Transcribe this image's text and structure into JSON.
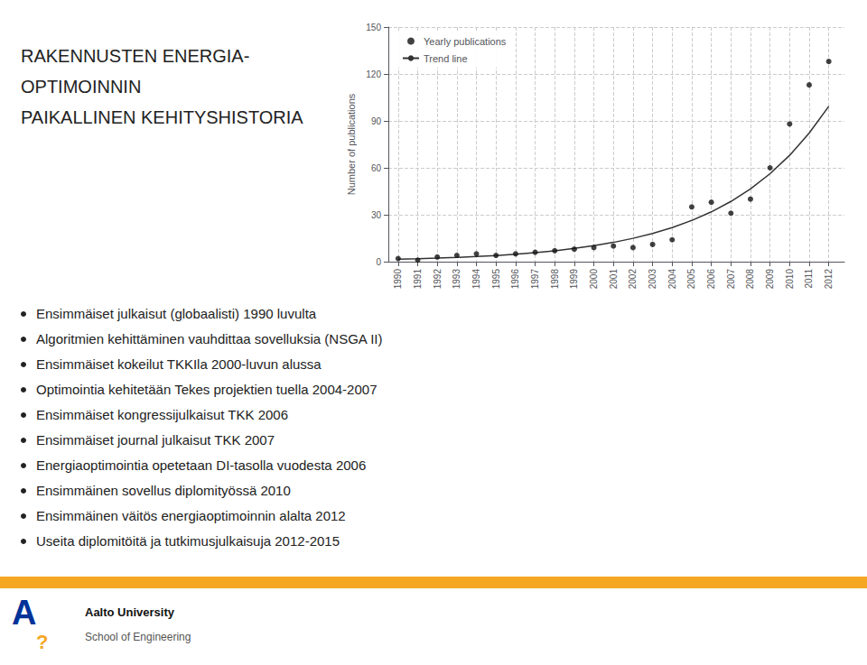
{
  "chart_data": {
    "type": "scatter",
    "title": "RAKENNUSTEN ENERGIA-\nOPTIMOINNIN\nPAIKALLINEN KEHITYSHISTORIA",
    "ylabel": "Number of publications",
    "x": [
      1990,
      1991,
      1992,
      1993,
      1994,
      1995,
      1996,
      1997,
      1998,
      1999,
      2000,
      2001,
      2002,
      2003,
      2004,
      2005,
      2006,
      2007,
      2008,
      2009,
      2010,
      2011,
      2012
    ],
    "series": [
      {
        "name": "Yearly publications",
        "type": "scatter",
        "color": "#111111",
        "values": [
          2,
          1,
          3,
          4,
          5,
          4,
          5,
          6,
          7,
          8,
          9,
          10,
          9,
          11,
          14,
          35,
          38,
          31,
          40,
          60,
          88,
          113,
          128
        ]
      },
      {
        "name": "Trend line",
        "type": "line",
        "color": "#333333",
        "values": [
          1.53,
          1.85,
          2.24,
          2.71,
          3.27,
          3.96,
          4.78,
          5.78,
          6.99,
          8.45,
          10.21,
          12.34,
          14.92,
          18.03,
          21.8,
          26.35,
          31.85,
          38.5,
          46.53,
          56.25,
          67.99,
          82.18,
          99.33
        ]
      }
    ],
    "xlim": [
      1989.5,
      2012.8
    ],
    "xticks": [
      1990,
      1991,
      1992,
      1993,
      1994,
      1995,
      1996,
      1997,
      1998,
      1999,
      2000,
      2001,
      2002,
      2003,
      2004,
      2005,
      2006,
      2007,
      2008,
      2009,
      2010,
      2011,
      2012
    ],
    "ylim": [
      0,
      150
    ],
    "yticks": [
      0,
      30,
      60,
      90,
      120,
      150
    ],
    "grid": true,
    "legend": "upper left",
    "annotations": {
      "bullets": [
        "Ensimmäiset julkaisut (globaalisti) 1990 luvulta",
        "Algoritmien kehittäminen vauhdittaa sovelluksia (NSGA II)",
        "Ensimmäiset kokeilut TKKIla 2000-luvun alussa",
        "Optimointia kehitetään Tekes projektien tuella 2004-2007",
        "Ensimmäiset kongressijulkaisut TKK 2006",
        "Ensimmäiset journal julkaisut TKK 2007",
        "Energiaoptimointia opetetaan DI-tasolla vuodesta 2006",
        "Ensimmäinen sovellus diplomityössä 2010",
        "Ensimmäinen väitös energiaoptimoinnin alalta 2012",
        "Useita diplomitöitä ja tutkimusjulkaisuja 2012-2015"
      ],
      "logo": [
        "A",
        "?",
        "Aalto University",
        "School of Engineering"
      ]
    }
  }
}
